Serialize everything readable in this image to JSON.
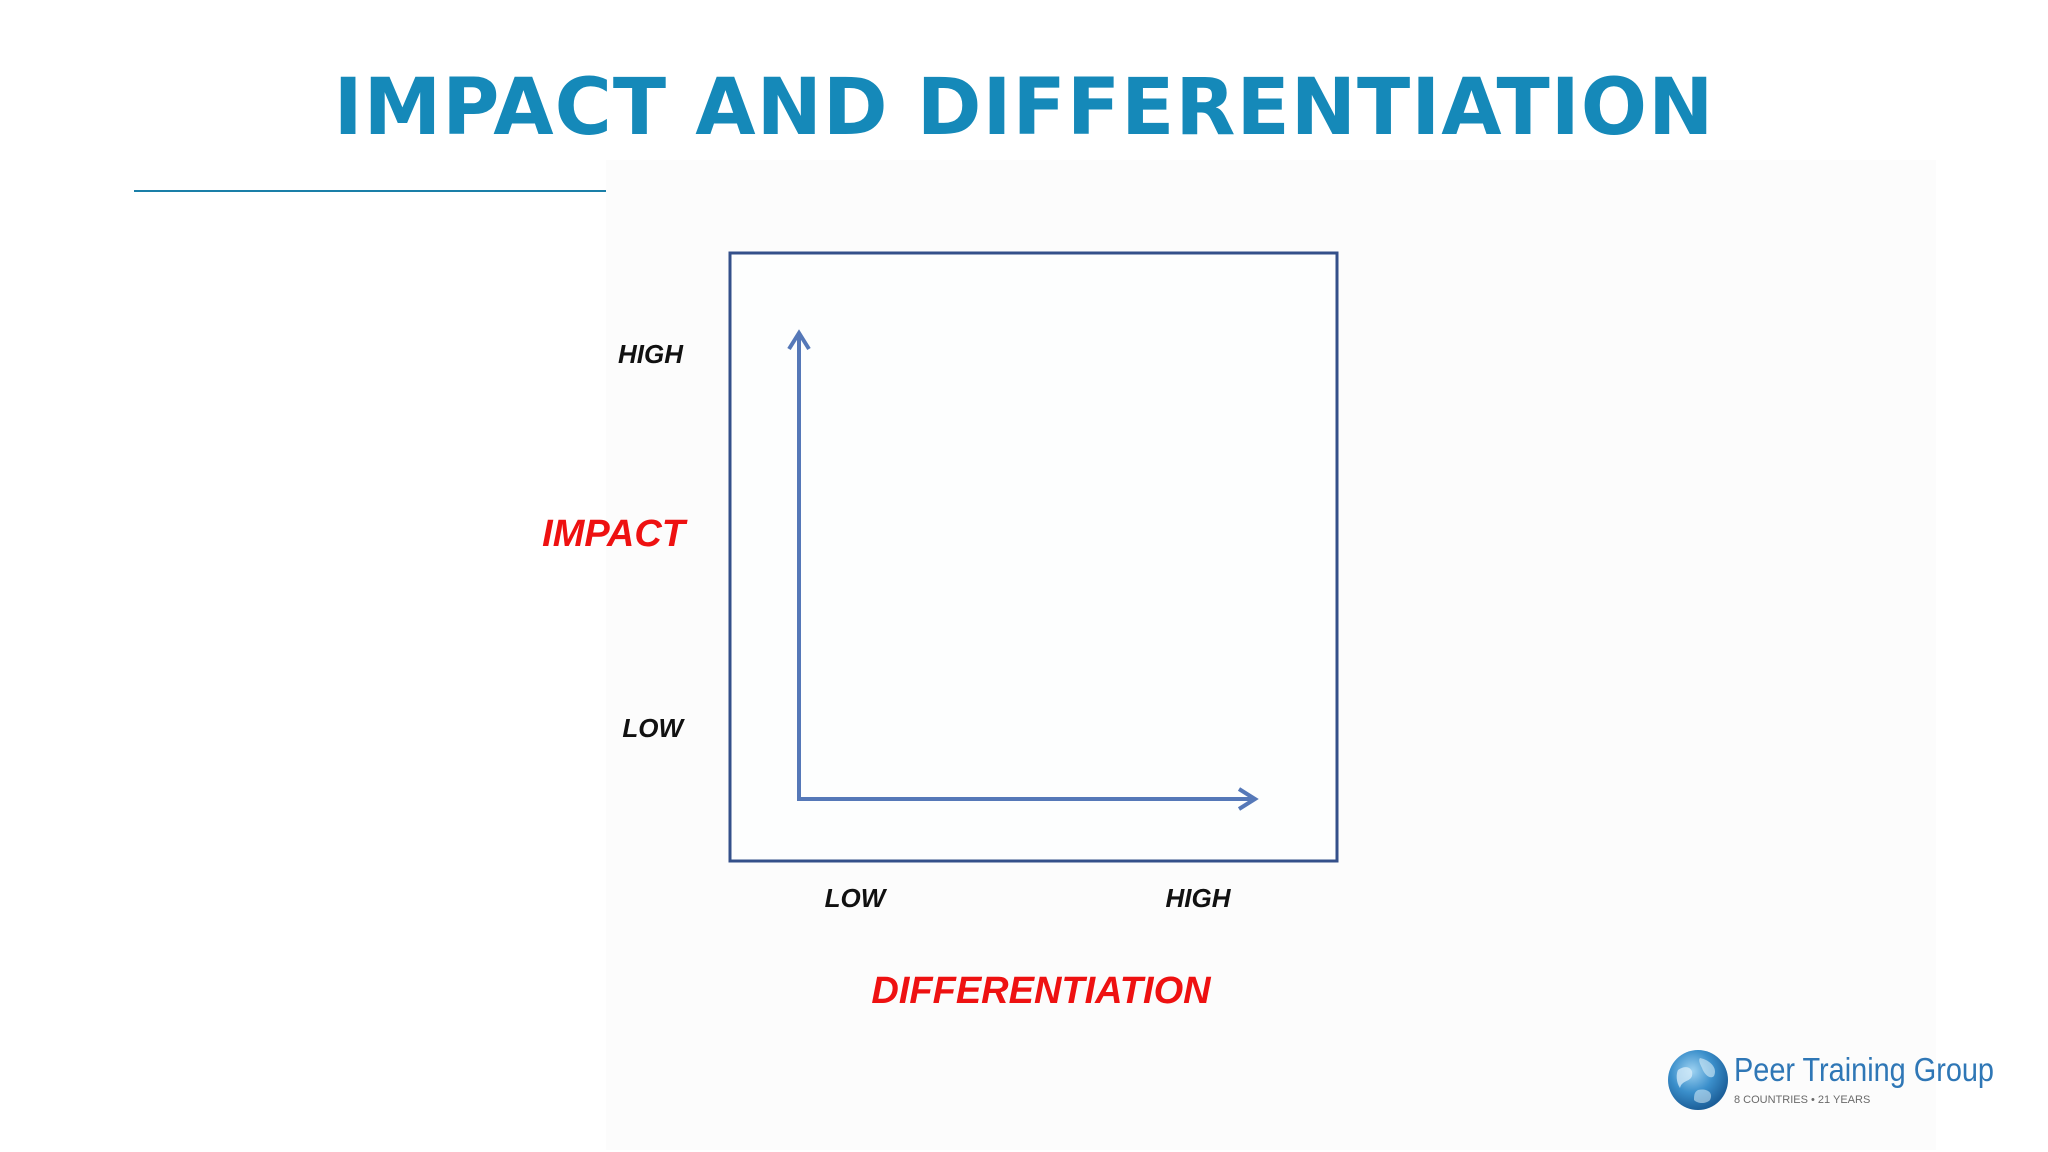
{
  "page": {
    "title": "IMPACT AND DIFFERENTIATION"
  },
  "diagram": {
    "y_axis": {
      "title": "IMPACT",
      "high_label": "HIGH",
      "low_label": "LOW"
    },
    "x_axis": {
      "title": "DIFFERENTIATION",
      "low_label": "LOW",
      "high_label": "HIGH"
    }
  },
  "logo": {
    "name": "Peer Training Group",
    "tagline": "8 COUNTRIES • 21 YEARS"
  },
  "colors": {
    "title": "#1589b9",
    "rule": "#1a7fa8",
    "frame": "#34508a",
    "arrow": "#5578b8",
    "axis_title": "#ee1111",
    "tick_label": "#111111",
    "logo_text": "#2f77b6",
    "logo_tagline": "#6a6a6a"
  }
}
